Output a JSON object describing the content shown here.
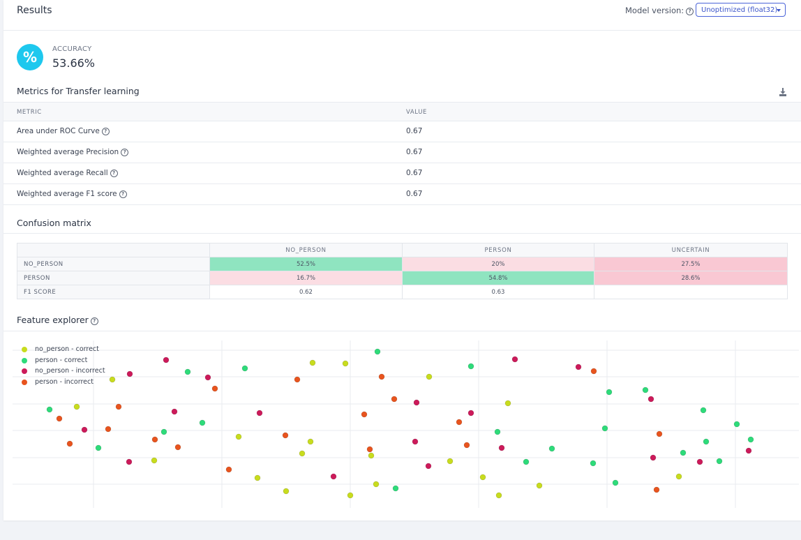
{
  "header": {
    "title": "Results",
    "model_version_label": "Model version:",
    "model_version_value": "Unoptimized (float32)"
  },
  "accuracy": {
    "icon": "percent-icon",
    "label": "ACCURACY",
    "value": "53.66%"
  },
  "metrics": {
    "title": "Metrics for Transfer learning",
    "download_icon": "download-icon",
    "headers": [
      "METRIC",
      "VALUE"
    ],
    "rows": [
      {
        "metric": "Area under ROC Curve",
        "value": "0.67"
      },
      {
        "metric": "Weighted average Precision",
        "value": "0.67"
      },
      {
        "metric": "Weighted average Recall",
        "value": "0.67"
      },
      {
        "metric": "Weighted average F1 score",
        "value": "0.67"
      }
    ]
  },
  "confusion": {
    "title": "Confusion matrix",
    "columns": [
      "NO_PERSON",
      "PERSON",
      "UNCERTAIN"
    ],
    "rows": [
      {
        "label": "NO_PERSON",
        "cells": [
          "52.5%",
          "20%",
          "27.5%"
        ]
      },
      {
        "label": "PERSON",
        "cells": [
          "16.7%",
          "54.8%",
          "28.6%"
        ]
      },
      {
        "label": "F1 SCORE",
        "cells": [
          "0.62",
          "0.63",
          ""
        ]
      }
    ],
    "colors": {
      "correct": "#8fe4c0",
      "incorrect_light": "#fbdde3",
      "incorrect": "#f9c8d3"
    }
  },
  "feature_explorer": {
    "title": "Feature explorer",
    "legend": [
      {
        "label": "no_person - correct",
        "color": "#c8dc1e"
      },
      {
        "label": "person - correct",
        "color": "#2edb7a"
      },
      {
        "label": "no_person - incorrect",
        "color": "#cc1a5a"
      },
      {
        "label": "person - incorrect",
        "color": "#e8541e"
      }
    ]
  },
  "chart_data": {
    "type": "scatter",
    "xlabel": "",
    "ylabel": "",
    "grid": true,
    "legend_position": "top-left",
    "series": [
      {
        "name": "no_person - correct",
        "points": [
          [
            156,
            544
          ],
          [
            105,
            583
          ],
          [
            216,
            660
          ],
          [
            337,
            626
          ],
          [
            364,
            685
          ],
          [
            405,
            704
          ],
          [
            428,
            650
          ],
          [
            440,
            633
          ],
          [
            443,
            520
          ],
          [
            490,
            521
          ],
          [
            497,
            710
          ],
          [
            527,
            653
          ],
          [
            534,
            694
          ],
          [
            610,
            540
          ],
          [
            640,
            661
          ],
          [
            687,
            684
          ],
          [
            710,
            710
          ],
          [
            723,
            578
          ],
          [
            768,
            696
          ],
          [
            968,
            683
          ]
        ]
      },
      {
        "name": "person - correct",
        "points": [
          [
            66,
            587
          ],
          [
            136,
            642
          ],
          [
            230,
            619
          ],
          [
            264,
            533
          ],
          [
            285,
            606
          ],
          [
            346,
            528
          ],
          [
            536,
            504
          ],
          [
            562,
            700
          ],
          [
            670,
            525
          ],
          [
            708,
            619
          ],
          [
            749,
            662
          ],
          [
            786,
            643
          ],
          [
            845,
            664
          ],
          [
            862,
            614
          ],
          [
            868,
            562
          ],
          [
            877,
            692
          ],
          [
            920,
            559
          ],
          [
            974,
            649
          ],
          [
            1003,
            588
          ],
          [
            1007,
            633
          ],
          [
            1026,
            661
          ],
          [
            1051,
            608
          ],
          [
            1071,
            630
          ]
        ]
      },
      {
        "name": "no_person - incorrect",
        "points": [
          [
            116,
            616
          ],
          [
            181,
            536
          ],
          [
            180,
            662
          ],
          [
            233,
            516
          ],
          [
            245,
            590
          ],
          [
            293,
            541
          ],
          [
            367,
            592
          ],
          [
            473,
            683
          ],
          [
            590,
            633
          ],
          [
            592,
            577
          ],
          [
            609,
            668
          ],
          [
            670,
            592
          ],
          [
            714,
            642
          ],
          [
            733,
            515
          ],
          [
            824,
            526
          ],
          [
            928,
            572
          ],
          [
            931,
            656
          ],
          [
            998,
            662
          ],
          [
            1068,
            646
          ]
        ]
      },
      {
        "name": "person - incorrect",
        "points": [
          [
            80,
            600
          ],
          [
            95,
            636
          ],
          [
            150,
            615
          ],
          [
            165,
            583
          ],
          [
            217,
            630
          ],
          [
            250,
            641
          ],
          [
            303,
            557
          ],
          [
            323,
            673
          ],
          [
            404,
            624
          ],
          [
            421,
            544
          ],
          [
            517,
            594
          ],
          [
            525,
            644
          ],
          [
            542,
            540
          ],
          [
            560,
            572
          ],
          [
            653,
            605
          ],
          [
            664,
            638
          ],
          [
            846,
            532
          ],
          [
            936,
            702
          ],
          [
            940,
            622
          ]
        ]
      }
    ]
  }
}
